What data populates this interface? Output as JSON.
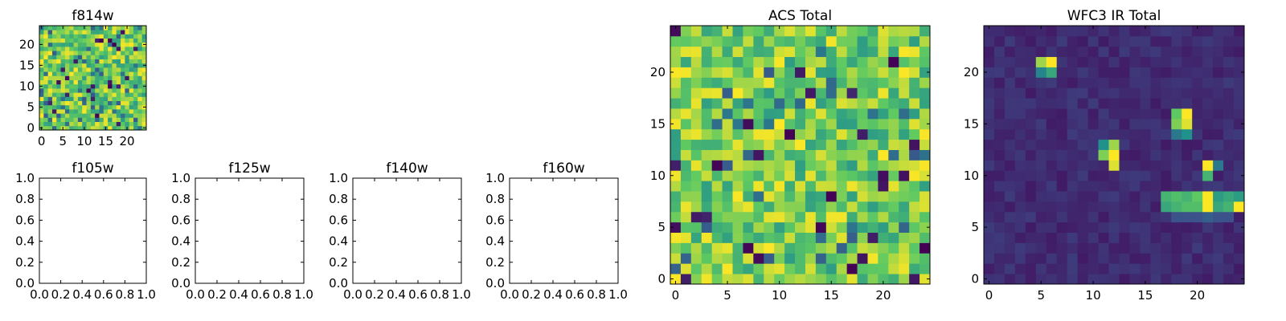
{
  "colormap": "viridis",
  "viridis_stops": [
    "#440154",
    "#3b528b",
    "#21918c",
    "#5ec962",
    "#fde725"
  ],
  "chart_data": [
    {
      "id": "f814w",
      "type": "heatmap",
      "title": "f814w",
      "grid": [
        25,
        25
      ],
      "xticks": [
        "0",
        "5",
        "10",
        "15",
        "20"
      ],
      "yticks": [
        "0",
        "5",
        "10",
        "15",
        "20"
      ],
      "field": "noise",
      "seed": 11
    },
    {
      "id": "f105w",
      "type": "empty-axes",
      "title": "f105w",
      "xticks": [
        "0.0",
        "0.2",
        "0.4",
        "0.6",
        "0.8",
        "1.0"
      ],
      "yticks": [
        "0.0",
        "0.2",
        "0.4",
        "0.6",
        "0.8",
        "1.0"
      ]
    },
    {
      "id": "f125w",
      "type": "empty-axes",
      "title": "f125w",
      "xticks": [
        "0.0",
        "0.2",
        "0.4",
        "0.6",
        "0.8",
        "1.0"
      ],
      "yticks": [
        "0.0",
        "0.2",
        "0.4",
        "0.6",
        "0.8",
        "1.0"
      ]
    },
    {
      "id": "f140w",
      "type": "empty-axes",
      "title": "f140w",
      "xticks": [
        "0.0",
        "0.2",
        "0.4",
        "0.6",
        "0.8",
        "1.0"
      ],
      "yticks": [
        "0.0",
        "0.2",
        "0.4",
        "0.6",
        "0.8",
        "1.0"
      ]
    },
    {
      "id": "f160w",
      "type": "empty-axes",
      "title": "f160w",
      "xticks": [
        "0.0",
        "0.2",
        "0.4",
        "0.6",
        "0.8",
        "1.0"
      ],
      "yticks": [
        "0.0",
        "0.2",
        "0.4",
        "0.6",
        "0.8",
        "1.0"
      ]
    },
    {
      "id": "acs-total",
      "type": "heatmap",
      "title": "ACS Total",
      "grid": [
        25,
        25
      ],
      "xticks": [
        "0",
        "5",
        "10",
        "15",
        "20"
      ],
      "yticks": [
        "0",
        "5",
        "10",
        "15",
        "20"
      ],
      "field": "noise",
      "seed": 37
    },
    {
      "id": "wfc3-ir-total",
      "type": "heatmap",
      "title": "WFC3 IR Total",
      "grid": [
        25,
        25
      ],
      "xticks": [
        "0",
        "5",
        "10",
        "15",
        "20"
      ],
      "yticks": [
        "0",
        "5",
        "10",
        "15",
        "20"
      ],
      "field": "sources",
      "seed": 5,
      "background_level": 0.08,
      "sources": [
        {
          "x": 5,
          "y": 21,
          "value": 0.85
        },
        {
          "x": 6,
          "y": 21,
          "value": 1.0
        },
        {
          "x": 5,
          "y": 20,
          "value": 0.45
        },
        {
          "x": 6,
          "y": 20,
          "value": 0.6
        },
        {
          "x": 18,
          "y": 16,
          "value": 0.75
        },
        {
          "x": 19,
          "y": 16,
          "value": 1.0
        },
        {
          "x": 18,
          "y": 15,
          "value": 0.8
        },
        {
          "x": 19,
          "y": 15,
          "value": 0.95
        },
        {
          "x": 18,
          "y": 14,
          "value": 0.4
        },
        {
          "x": 19,
          "y": 14,
          "value": 0.5
        },
        {
          "x": 11,
          "y": 13,
          "value": 0.5
        },
        {
          "x": 12,
          "y": 13,
          "value": 0.85
        },
        {
          "x": 11,
          "y": 12,
          "value": 0.8
        },
        {
          "x": 12,
          "y": 12,
          "value": 1.0
        },
        {
          "x": 12,
          "y": 11,
          "value": 0.95
        },
        {
          "x": 21,
          "y": 11,
          "value": 1.0
        },
        {
          "x": 22,
          "y": 11,
          "value": 0.4
        },
        {
          "x": 21,
          "y": 10,
          "value": 0.65
        },
        {
          "x": 17,
          "y": 8,
          "value": 0.65
        },
        {
          "x": 18,
          "y": 8,
          "value": 0.7
        },
        {
          "x": 19,
          "y": 8,
          "value": 0.65
        },
        {
          "x": 20,
          "y": 8,
          "value": 0.75
        },
        {
          "x": 21,
          "y": 8,
          "value": 1.0
        },
        {
          "x": 22,
          "y": 8,
          "value": 0.55
        },
        {
          "x": 23,
          "y": 8,
          "value": 0.6
        },
        {
          "x": 24,
          "y": 8,
          "value": 0.55
        },
        {
          "x": 17,
          "y": 7,
          "value": 0.6
        },
        {
          "x": 18,
          "y": 7,
          "value": 0.65
        },
        {
          "x": 19,
          "y": 7,
          "value": 0.7
        },
        {
          "x": 20,
          "y": 7,
          "value": 0.7
        },
        {
          "x": 21,
          "y": 7,
          "value": 1.0
        },
        {
          "x": 22,
          "y": 7,
          "value": 0.6
        },
        {
          "x": 23,
          "y": 7,
          "value": 0.65
        },
        {
          "x": 24,
          "y": 7,
          "value": 1.0
        },
        {
          "x": 18,
          "y": 6,
          "value": 0.25
        },
        {
          "x": 19,
          "y": 6,
          "value": 0.25
        },
        {
          "x": 20,
          "y": 6,
          "value": 0.25
        },
        {
          "x": 21,
          "y": 6,
          "value": 0.3
        },
        {
          "x": 22,
          "y": 6,
          "value": 0.25
        },
        {
          "x": 23,
          "y": 6,
          "value": 0.25
        }
      ]
    }
  ]
}
